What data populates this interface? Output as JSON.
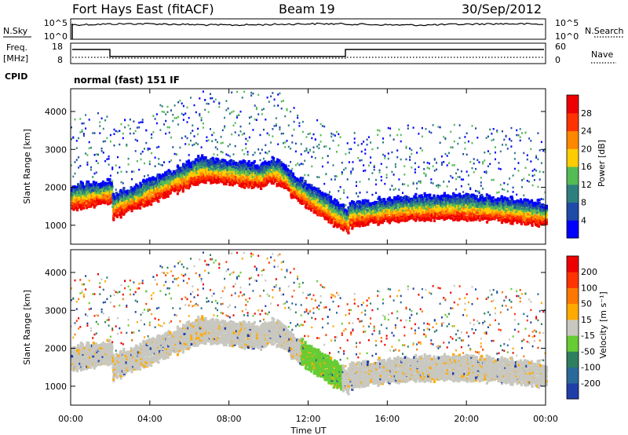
{
  "header": {
    "site": "Fort Hays East (fitACF)",
    "beam": "Beam 19",
    "date": "30/Sep/2012"
  },
  "panels": {
    "nsky": {
      "left_label": "N.Sky",
      "left_ticks": [
        "10^5",
        "10^0"
      ],
      "right_label": "N.Search",
      "right_ticks": [
        "10^5",
        "10^0"
      ]
    },
    "freq": {
      "left_label": "Freq.",
      "left_unit": "[MHz]",
      "left_ticks": [
        "18",
        "8"
      ],
      "right_label": "Nave",
      "right_ticks": [
        "60",
        "0"
      ]
    },
    "cpid": {
      "label": "CPID",
      "value": "normal (fast) 151 IF"
    }
  },
  "chart_data": [
    {
      "type": "heatmap",
      "name": "power",
      "ylabel": "Slant Range [km]",
      "yticks": [
        "1000",
        "2000",
        "3000",
        "4000"
      ],
      "ylim": [
        500,
        4600
      ],
      "colorbar_label": "Power [dB]",
      "colorbar_ticks": [
        "4",
        "8",
        "12",
        "16",
        "20",
        "24",
        "28"
      ],
      "colors": [
        "#0000ff",
        "#1f4aa8",
        "#2f7f7f",
        "#55bb55",
        "#ffcc00",
        "#ff8800",
        "#ff3300",
        "#ee0000"
      ]
    },
    {
      "type": "heatmap",
      "name": "velocity",
      "ylabel": "Slant Range [km]",
      "yticks": [
        "1000",
        "2000",
        "3000",
        "4000"
      ],
      "ylim": [
        500,
        4600
      ],
      "colorbar_label": "Velocity [m s⁻¹]",
      "colorbar_ticks": [
        "200",
        "100",
        "50",
        "15",
        "-15",
        "-50",
        "-100",
        "-200"
      ],
      "colors": [
        "#1f3fa8",
        "#2a6a9a",
        "#2f7f5f",
        "#66cc33",
        "#c8c8c0",
        "#ffaa00",
        "#ff7700",
        "#ff3300",
        "#ee0000"
      ]
    }
  ],
  "xaxis": {
    "label": "Time UT",
    "ticks": [
      "00:00",
      "04:00",
      "08:00",
      "12:00",
      "16:00",
      "20:00",
      "00:00"
    ]
  }
}
